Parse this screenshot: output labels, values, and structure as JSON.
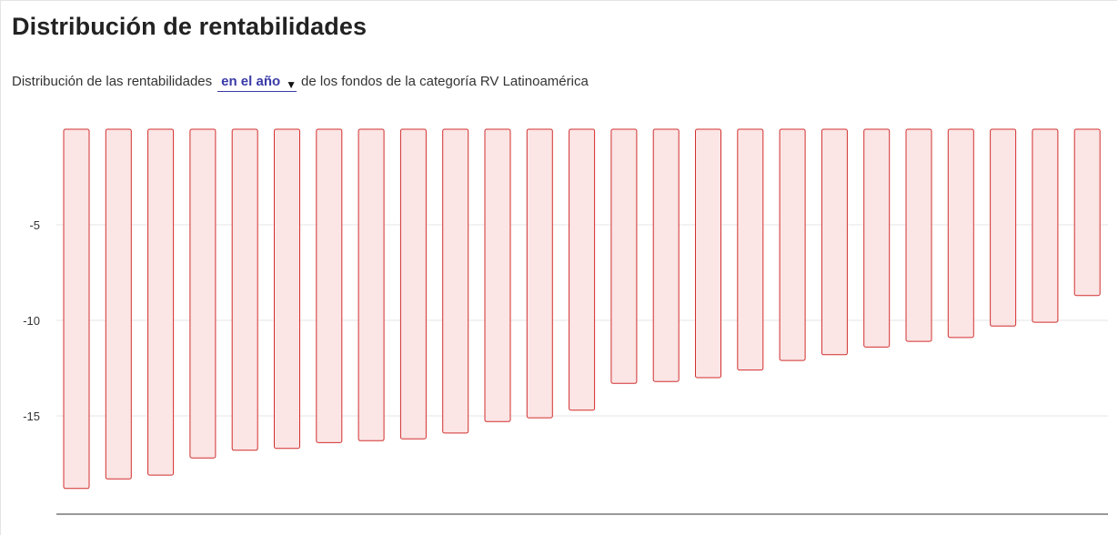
{
  "header": {
    "title": "Distribución de rentabilidades",
    "subtitle_prefix": "Distribución de las rentabilidades",
    "period_label": "en el año",
    "subtitle_suffix": "de los fondos de la categoría RV Latinoamérica"
  },
  "icons": {
    "period_dropdown": "caret-down-icon"
  },
  "colors": {
    "bar_fill": "#fbe5e5",
    "bar_stroke": "#d32f2f",
    "grid": "#e6e6e6",
    "axis": "#333333"
  },
  "chart_data": {
    "type": "bar",
    "title": "Distribución de rentabilidades",
    "xlabel": "",
    "ylabel": "",
    "ylim": [
      -20,
      0
    ],
    "yticks": [
      -5,
      -10,
      -15
    ],
    "grid": true,
    "values": [
      -18.8,
      -18.3,
      -18.1,
      -17.2,
      -16.8,
      -16.7,
      -16.4,
      -16.3,
      -16.2,
      -15.9,
      -15.3,
      -15.1,
      -14.7,
      -13.3,
      -13.2,
      -13.0,
      -12.6,
      -12.1,
      -11.8,
      -11.4,
      -11.1,
      -10.9,
      -10.3,
      -10.1,
      -8.7
    ]
  }
}
